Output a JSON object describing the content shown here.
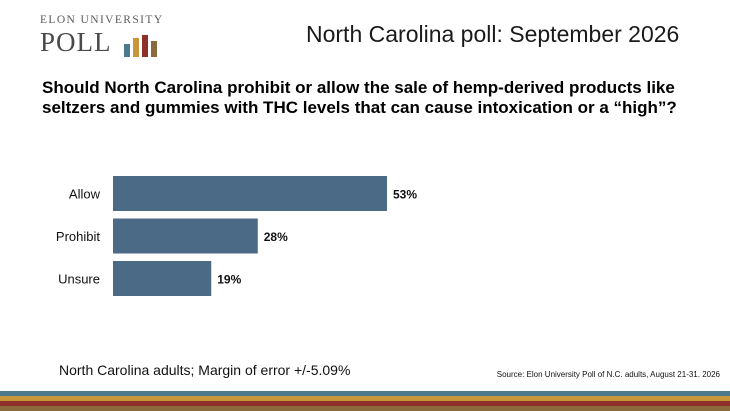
{
  "logo": {
    "line1": "ELON UNIVERSITY",
    "line2": "POLL",
    "bar_colors": [
      "#4b7a8c",
      "#c9963a",
      "#8e2f2a",
      "#8a6a3a"
    ]
  },
  "header": {
    "title": "North Carolina poll: September 2026"
  },
  "question": "Should North Carolina prohibit or allow the sale of hemp-derived products like seltzers and gummies with THC levels that can cause intoxication or a “high”?",
  "chart_data": {
    "type": "bar",
    "orientation": "horizontal",
    "categories": [
      "Allow",
      "Prohibit",
      "Unsure"
    ],
    "values": [
      53,
      28,
      19
    ],
    "value_labels": [
      "53%",
      "28%",
      "19%"
    ],
    "unit": "%",
    "xlim": [
      0,
      100
    ],
    "bar_color": "#4a6a85",
    "grid": false,
    "legend": "none"
  },
  "footer": {
    "note": "North Carolina adults; Margin of error +/-5.09%",
    "source": "Source: Elon University Poll of N.C. adults, August 21-31. 2026"
  },
  "colors": {
    "bar": "#4a6a85",
    "stripes": [
      "#4b7a8c",
      "#c9963a",
      "#8e2f2a",
      "#8a6a3a"
    ]
  }
}
